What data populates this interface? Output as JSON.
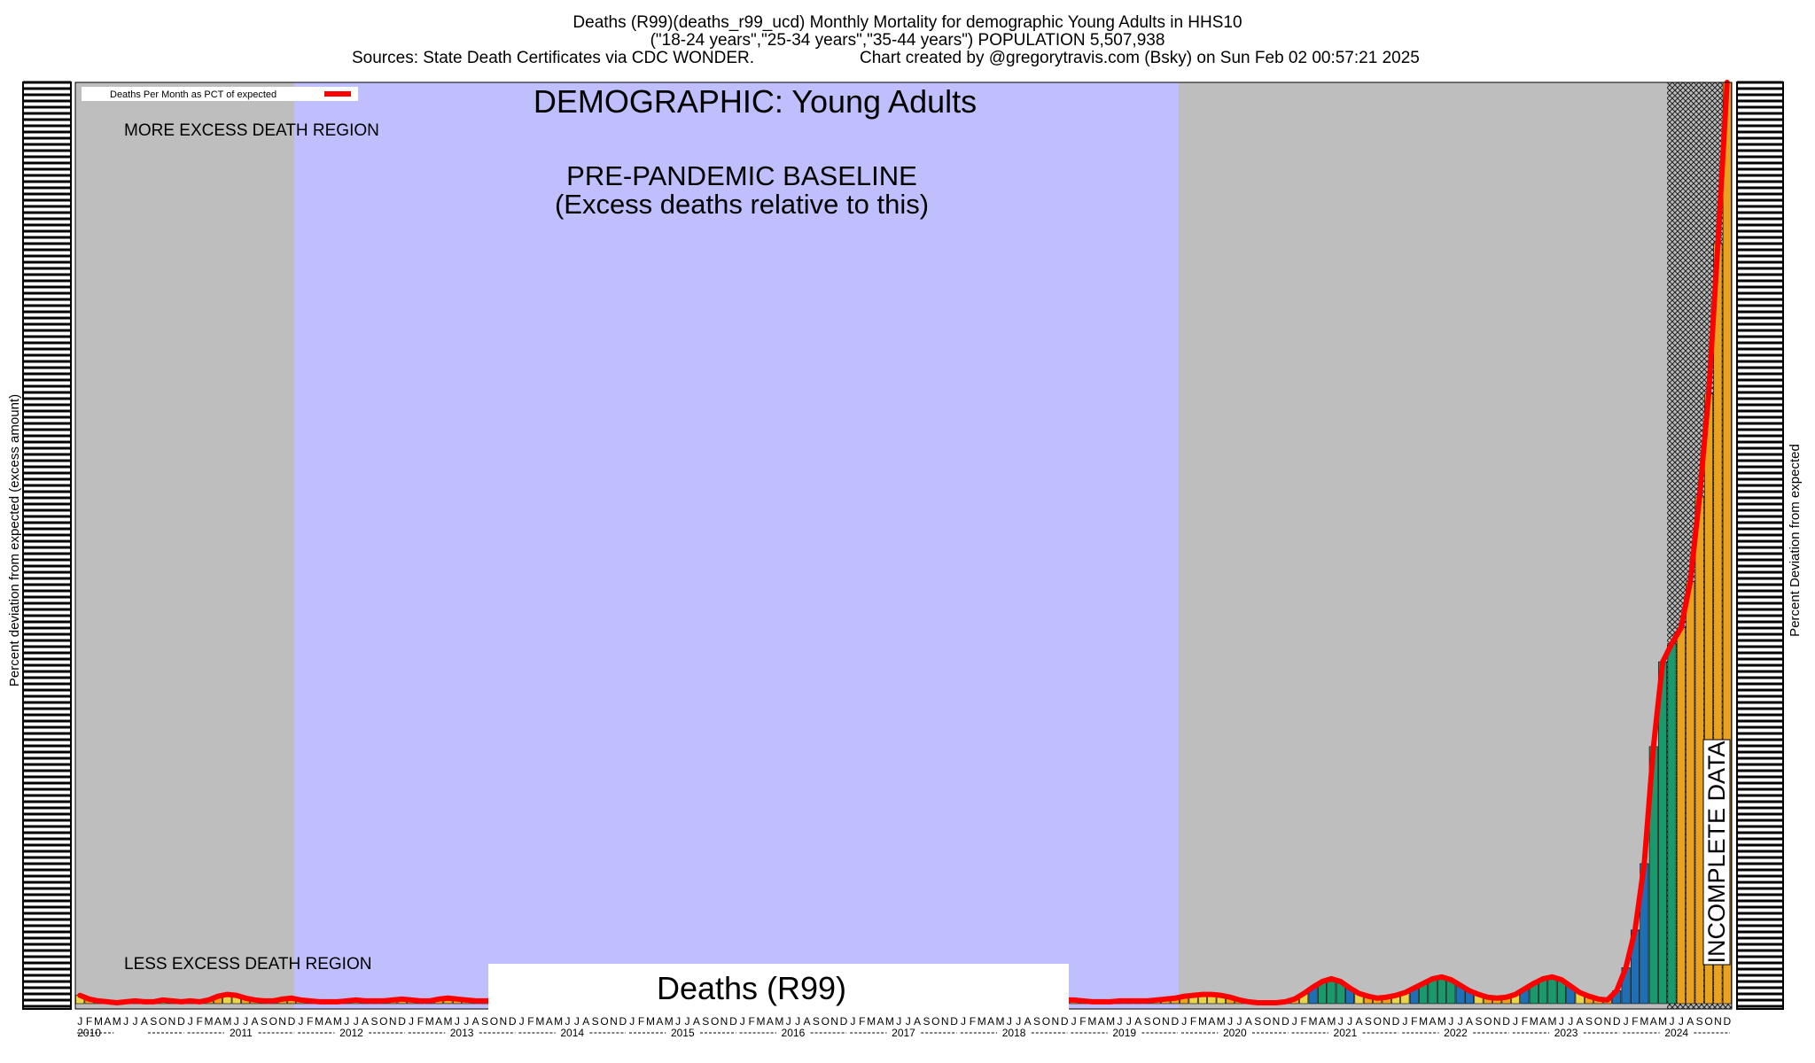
{
  "header": {
    "line1": "Deaths (R99)(deaths_r99_ucd) Monthly Mortality for demographic Young Adults in HHS10",
    "line2": "(\"18-24 years\",\"25-34 years\",\"35-44 years\") POPULATION 5,507,938",
    "line3_left": "Sources: State Death Certificates via CDC WONDER.",
    "line3_right": "Chart created by @gregorytravis.com (Bsky) on Sun Feb 02 00:57:21 2025"
  },
  "legend": {
    "label": "Deaths Per Month as PCT of expected",
    "line_color": "#ff0000"
  },
  "annotations": {
    "demographic": "DEMOGRAPHIC: Young Adults",
    "baseline_line1": "PRE-PANDEMIC BASELINE",
    "baseline_line2": "(Excess deaths relative to this)",
    "more_region": "MORE EXCESS DEATH REGION",
    "less_region": "LESS EXCESS DEATH REGION",
    "incomplete": "INCOMPLETE DATA",
    "footer": "Deaths (R99)"
  },
  "axes": {
    "ylabel_left": "Percent deviation from expected (excess amount)",
    "ylabel_right": "Percent Deviation from expected"
  },
  "colors": {
    "region_gray": "#bebebe",
    "baseline_blue": "#bfbffd",
    "line_red": "#ff0000",
    "bar_blue": "#1f6fb4",
    "bar_green": "#1a9a6c",
    "bar_yellow": "#e9d44a",
    "bar_orange": "#e8a21f"
  },
  "chart_data": {
    "type": "bar",
    "month_labels": [
      "J",
      "F",
      "M",
      "A",
      "M",
      "J",
      "J",
      "A",
      "S",
      "O",
      "N",
      "D"
    ],
    "years": [
      "2010",
      "2011",
      "2012",
      "2013",
      "2014",
      "2015",
      "2016",
      "2017",
      "2018",
      "2019",
      "2020",
      "2021",
      "2022",
      "2023",
      "2024"
    ],
    "baseline_years": [
      "2012",
      "2013",
      "2014",
      "2015",
      "2016",
      "2017",
      "2018",
      "2019"
    ],
    "incomplete_from": "2024-07",
    "series": [
      {
        "name": "Deaths Per Month as PCT of expected",
        "values": [
          0.9,
          0.5,
          0.3,
          0.2,
          0.1,
          0.2,
          0.3,
          0.2,
          0.2,
          0.4,
          0.3,
          0.2,
          0.3,
          0.2,
          0.4,
          0.8,
          1.0,
          0.9,
          0.6,
          0.4,
          0.3,
          0.3,
          0.5,
          0.6,
          0.4,
          0.3,
          0.2,
          0.2,
          0.2,
          0.3,
          0.4,
          0.3,
          0.3,
          0.3,
          0.4,
          0.5,
          0.4,
          0.3,
          0.3,
          0.5,
          0.6,
          0.5,
          0.4,
          0.3,
          0.3,
          0.3,
          0.5,
          0.6,
          0.7,
          0.8,
          0.7,
          0.6,
          0.5,
          0.5,
          0.6,
          0.6,
          0.5,
          0.4,
          0.5,
          0.6,
          0.5,
          0.5,
          0.4,
          0.4,
          0.5,
          0.6,
          0.6,
          0.5,
          0.5,
          0.5,
          0.4,
          0.5,
          0.5,
          0.4,
          0.4,
          0.5,
          0.5,
          0.4,
          0.4,
          0.5,
          0.5,
          0.4,
          0.4,
          0.5,
          0.5,
          0.5,
          0.4,
          0.4,
          0.4,
          0.5,
          0.5,
          0.4,
          0.4,
          0.5,
          0.5,
          0.5,
          0.5,
          0.4,
          0.4,
          0.4,
          0.5,
          0.5,
          0.4,
          0.4,
          0.5,
          0.5,
          0.4,
          0.4,
          0.4,
          0.3,
          0.2,
          0.2,
          0.2,
          0.3,
          0.3,
          0.3,
          0.3,
          0.4,
          0.5,
          0.6,
          0.8,
          0.9,
          1.0,
          1.0,
          0.9,
          0.7,
          0.4,
          0.2,
          0.1,
          0.1,
          0.1,
          0.2,
          0.5,
          1.1,
          1.8,
          2.4,
          2.7,
          2.4,
          1.7,
          1.1,
          0.8,
          0.6,
          0.7,
          0.9,
          1.2,
          1.7,
          2.2,
          2.7,
          2.9,
          2.6,
          2.0,
          1.4,
          1.0,
          0.7,
          0.6,
          0.7,
          1.0,
          1.6,
          2.2,
          2.7,
          2.9,
          2.6,
          1.9,
          1.2,
          0.8,
          0.5,
          0.4,
          1.4,
          3.9,
          8.0,
          15.2,
          27.9,
          37.1,
          39.1,
          40.8,
          45.8,
          55.0,
          66.2,
          82.5,
          100.0
        ]
      }
    ]
  }
}
